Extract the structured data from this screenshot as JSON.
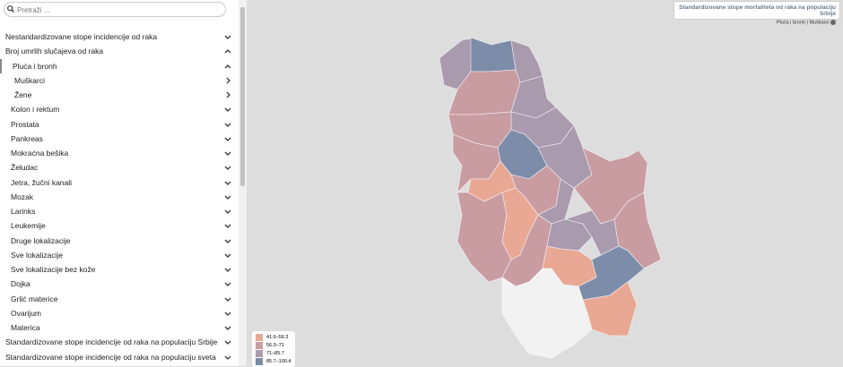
{
  "search": {
    "placeholder": "Pretraži ..."
  },
  "menu": [
    {
      "label": "Nestandardizovane stope incidencije od raka",
      "level": 0,
      "state": "collapsed"
    },
    {
      "label": "Broj umrlih slučajeva od raka",
      "level": 0,
      "state": "expanded"
    },
    {
      "label": "Pluća i bronh",
      "level": 1,
      "state": "expanded"
    },
    {
      "label": "Muškarci",
      "level": 2,
      "state": "link"
    },
    {
      "label": "Žene",
      "level": 2,
      "state": "link"
    },
    {
      "label": "Kolon i rektum",
      "level": 1,
      "state": "collapsed"
    },
    {
      "label": "Prostata",
      "level": 1,
      "state": "collapsed"
    },
    {
      "label": "Pankreas",
      "level": 1,
      "state": "collapsed"
    },
    {
      "label": "Mokraćna bešika",
      "level": 1,
      "state": "collapsed"
    },
    {
      "label": "Želudac",
      "level": 1,
      "state": "collapsed"
    },
    {
      "label": "Jetra, žučni kanali",
      "level": 1,
      "state": "collapsed"
    },
    {
      "label": "Mozak",
      "level": 1,
      "state": "collapsed"
    },
    {
      "label": "Larinks",
      "level": 1,
      "state": "collapsed"
    },
    {
      "label": "Leukemije",
      "level": 1,
      "state": "collapsed"
    },
    {
      "label": "Druge lokalizacije",
      "level": 1,
      "state": "collapsed"
    },
    {
      "label": "Sve lokalizacije",
      "level": 1,
      "state": "collapsed"
    },
    {
      "label": "Sve lokalizacije bez kože",
      "level": 1,
      "state": "collapsed"
    },
    {
      "label": "Dojka",
      "level": 1,
      "state": "collapsed"
    },
    {
      "label": "Grlić materice",
      "level": 1,
      "state": "collapsed"
    },
    {
      "label": "Ovarijum",
      "level": 1,
      "state": "collapsed"
    },
    {
      "label": "Materica",
      "level": 1,
      "state": "collapsed"
    },
    {
      "label": "Standardizovane stope incidencije od raka na populaciju Srbije",
      "level": 0,
      "state": "collapsed"
    },
    {
      "label": "Standardizovane stope incidencije od raka na populaciju sveta",
      "level": 0,
      "state": "collapsed"
    }
  ],
  "map": {
    "title": "Standardizovane stope mortaliteta od raka na populaciju Srbije",
    "subtitle": "Pluća i bronh | Muškarci",
    "legend": [
      {
        "label": "41.6–56.3",
        "color": "#e8a894"
      },
      {
        "label": "56.3–71",
        "color": "#c99ca2"
      },
      {
        "label": "71–85.7",
        "color": "#a99aae"
      },
      {
        "label": "85.7–100.4",
        "color": "#7d8ca8"
      }
    ]
  }
}
